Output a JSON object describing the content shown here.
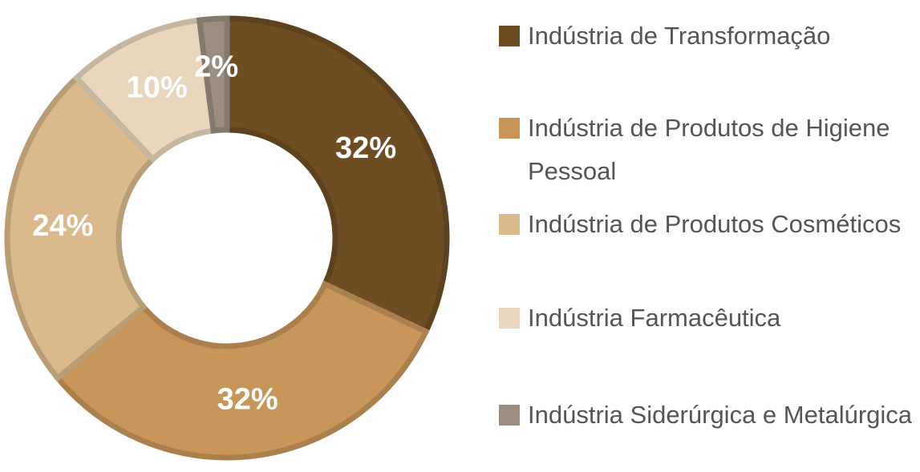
{
  "chart_data": {
    "type": "donut",
    "categories": [
      "Indústria de Transformação",
      "Indústria de Produtos de Higiene Pessoal",
      "Indústria de Produtos Cosméticos",
      "Indústria Farmacêutica",
      "Indústria Siderúrgica e Metalúrgica"
    ],
    "values": [
      32,
      32,
      24,
      10,
      2
    ],
    "value_labels": [
      "32%",
      "32%",
      "24%",
      "10%",
      "2%"
    ],
    "colors": [
      "#6f4d22",
      "#c9965a",
      "#dab98a",
      "#e9d6bc",
      "#9b8e80"
    ],
    "legend": "right"
  }
}
